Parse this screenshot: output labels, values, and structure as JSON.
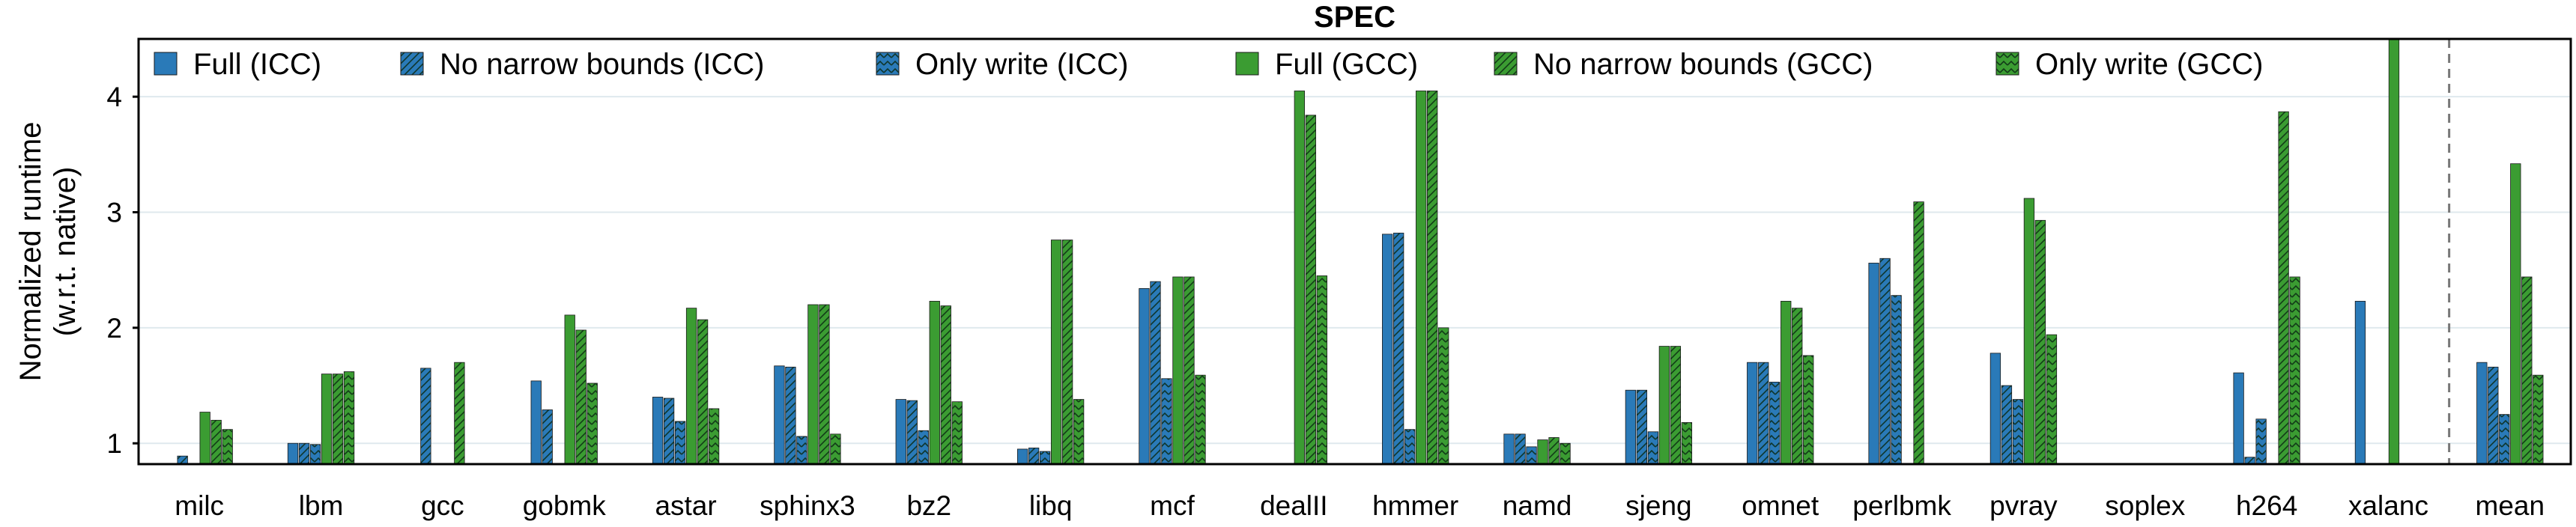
{
  "chart_data": {
    "type": "bar",
    "title": "SPEC",
    "ylabel": "Normalized runtime\n(w.r.t. native)",
    "ylabel_lines": [
      "Normalized runtime",
      "(w.r.t. native)"
    ],
    "ylim": [
      0.82,
      4.5
    ],
    "yticks": [
      1,
      2,
      3,
      4
    ],
    "grid": true,
    "legend_placement": "top",
    "separator_before": "mean",
    "categories": [
      "milc",
      "lbm",
      "gcc",
      "gobmk",
      "astar",
      "sphinx3",
      "bz2",
      "libq",
      "mcf",
      "dealII",
      "hmmer",
      "namd",
      "sjeng",
      "omnet",
      "perlbmk",
      "pvray",
      "soplex",
      "h264",
      "xalanc",
      "mean"
    ],
    "series": [
      {
        "name": "Full (ICC)",
        "color": "#2a7ab8",
        "pattern": "solid",
        "values": [
          null,
          1.0,
          null,
          1.54,
          1.4,
          1.67,
          1.38,
          0.95,
          2.34,
          null,
          2.81,
          1.08,
          1.46,
          1.7,
          2.56,
          1.78,
          null,
          1.61,
          2.23,
          1.7
        ]
      },
      {
        "name": "No narrow bounds (ICC)",
        "color": "#2a7ab8",
        "pattern": "diagonal",
        "values": [
          0.89,
          1.0,
          1.65,
          1.29,
          1.39,
          1.66,
          1.37,
          0.96,
          2.4,
          null,
          2.82,
          1.08,
          1.46,
          1.7,
          2.6,
          1.5,
          null,
          0.88,
          null,
          1.66
        ]
      },
      {
        "name": "Only write (ICC)",
        "color": "#2a7ab8",
        "pattern": "chevron",
        "values": [
          null,
          0.99,
          null,
          null,
          1.19,
          1.06,
          1.11,
          0.93,
          1.56,
          null,
          1.12,
          0.97,
          1.1,
          1.53,
          2.28,
          1.38,
          null,
          1.21,
          null,
          1.25
        ]
      },
      {
        "name": "Full (GCC)",
        "color": "#3b9c32",
        "pattern": "solid",
        "values": [
          1.27,
          1.6,
          null,
          2.11,
          2.17,
          2.2,
          2.23,
          2.76,
          2.44,
          4.05,
          4.05,
          1.03,
          1.84,
          2.23,
          null,
          3.12,
          null,
          null,
          4.5,
          3.42
        ]
      },
      {
        "name": "No narrow bounds (GCC)",
        "color": "#3b9c32",
        "pattern": "diagonal",
        "values": [
          1.2,
          1.6,
          1.7,
          1.98,
          2.07,
          2.2,
          2.19,
          2.76,
          2.44,
          3.84,
          4.05,
          1.05,
          1.84,
          2.17,
          3.09,
          2.93,
          null,
          3.87,
          null,
          2.44
        ]
      },
      {
        "name": "Only write (GCC)",
        "color": "#3b9c32",
        "pattern": "chevron",
        "values": [
          1.12,
          1.62,
          null,
          1.52,
          1.3,
          1.08,
          1.36,
          1.38,
          1.59,
          2.45,
          2.0,
          1.0,
          1.18,
          1.76,
          null,
          1.94,
          null,
          2.44,
          null,
          1.59
        ]
      }
    ]
  }
}
